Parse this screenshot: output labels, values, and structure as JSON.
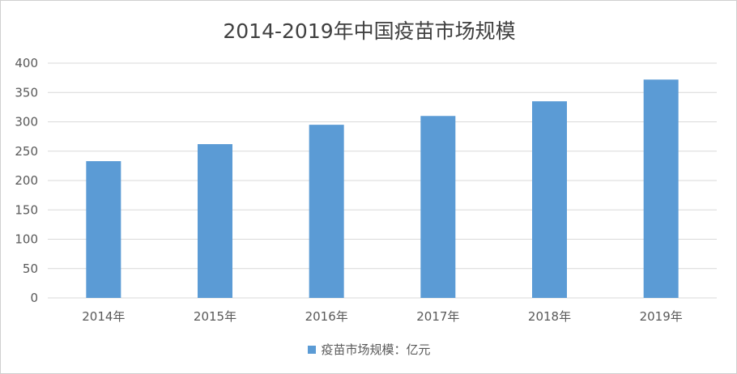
{
  "chart_data": {
    "type": "bar",
    "title": "2014-2019年中国疫苗市场规模",
    "categories": [
      "2014年",
      "2015年",
      "2016年",
      "2017年",
      "2018年",
      "2019年"
    ],
    "series": [
      {
        "name": "疫苗市场规模：亿元",
        "values": [
          233,
          262,
          295,
          310,
          335,
          372
        ]
      }
    ],
    "yticks": [
      0,
      50,
      100,
      150,
      200,
      250,
      300,
      350,
      400
    ],
    "ylim": [
      0,
      400
    ],
    "grid": true,
    "legend_position": "bottom",
    "bar_color": "#5b9bd5",
    "grid_color": "#d9d9d9",
    "text_color": "#595959"
  }
}
